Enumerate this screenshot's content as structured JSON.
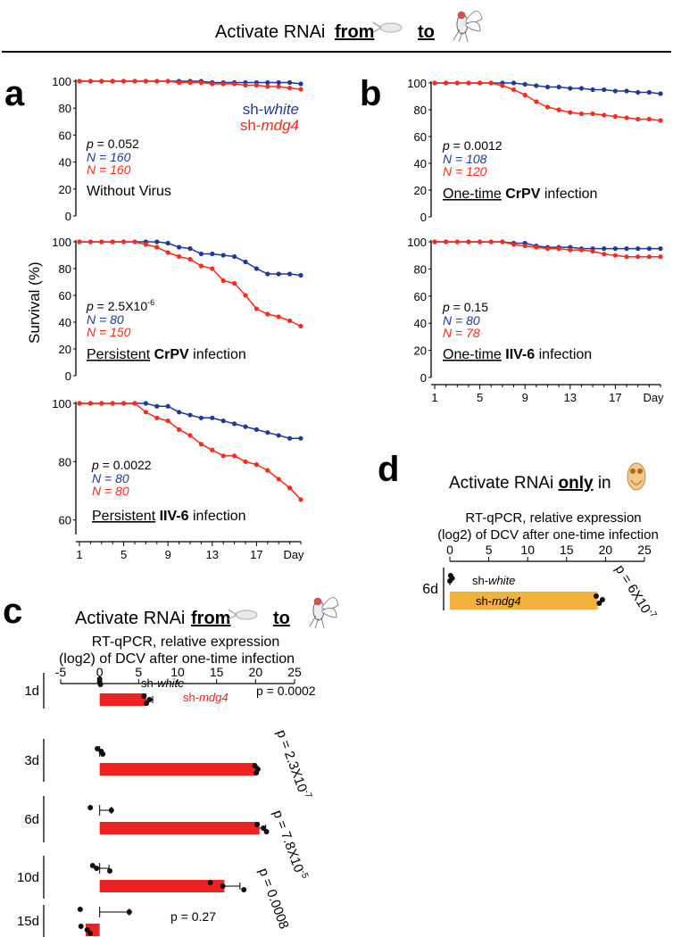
{
  "header": {
    "prefix": "Activate RNAi",
    "from": "from",
    "to": "to"
  },
  "colors": {
    "white_series": "#1f3a93",
    "mdg4_series": "#ff2a1a",
    "mdg4_bar_c": "#ee2222",
    "mdg4_bar_d": "#f2b13a",
    "dot": "#111111"
  },
  "legend": {
    "white_prefix": "sh-",
    "white_italic": "white",
    "mdg4_prefix": "sh-",
    "mdg4_italic": "mdg4"
  },
  "labels": {
    "survival_axis": "Survival (%)",
    "day": "Day"
  },
  "panels": {
    "a": "a",
    "b": "b",
    "c": "c",
    "d": "d"
  },
  "chart_data": [
    {
      "id": "a1",
      "panel": "a",
      "type": "line",
      "x": [
        1,
        2,
        3,
        4,
        5,
        6,
        7,
        8,
        9,
        10,
        11,
        12,
        13,
        14,
        15,
        16,
        17,
        18,
        19,
        20,
        21
      ],
      "xticks": [
        1,
        5,
        9,
        13,
        17
      ],
      "yticks": [
        0,
        20,
        40,
        60,
        80,
        100
      ],
      "ylim": [
        0,
        100
      ],
      "series": [
        {
          "name": "sh-white",
          "color": "#1f3a93",
          "values": [
            100,
            100,
            100,
            100,
            100,
            100,
            100,
            100,
            100,
            100,
            100,
            100,
            99,
            99,
            99,
            99,
            99,
            99,
            99,
            99,
            98
          ]
        },
        {
          "name": "sh-mdg4",
          "color": "#ff2a1a",
          "values": [
            100,
            100,
            100,
            100,
            100,
            100,
            100,
            100,
            100,
            99,
            99,
            99,
            98,
            98,
            98,
            97,
            97,
            96,
            96,
            95,
            94
          ]
        }
      ],
      "stats": {
        "p": "= 0.052",
        "n_white": "N = 160",
        "n_mdg4": "N = 160"
      },
      "caption": {
        "underlined": "",
        "bold": "",
        "rest": "Without Virus"
      },
      "show_legend": true,
      "show_xaxis": false
    },
    {
      "id": "a2",
      "panel": "a",
      "type": "line",
      "x": [
        1,
        2,
        3,
        4,
        5,
        6,
        7,
        8,
        9,
        10,
        11,
        12,
        13,
        14,
        15,
        16,
        17,
        18,
        19,
        20,
        21
      ],
      "xticks": [
        1,
        5,
        9,
        13,
        17
      ],
      "yticks": [
        0,
        20,
        40,
        60,
        80,
        100
      ],
      "ylim": [
        0,
        100
      ],
      "series": [
        {
          "name": "sh-white",
          "color": "#1f3a93",
          "values": [
            100,
            100,
            100,
            100,
            100,
            100,
            100,
            100,
            99,
            96,
            95,
            91,
            91,
            90,
            89,
            85,
            80,
            76,
            76,
            76,
            75
          ]
        },
        {
          "name": "sh-mdg4",
          "color": "#ff2a1a",
          "values": [
            100,
            100,
            100,
            100,
            100,
            100,
            98,
            96,
            92,
            89,
            87,
            82,
            80,
            71,
            69,
            60,
            50,
            46,
            44,
            41,
            37
          ]
        }
      ],
      "stats": {
        "p": "= 2.5X10",
        "p_exp": "-6",
        "n_white": "N = 80",
        "n_mdg4": "N = 150"
      },
      "caption": {
        "underlined": "Persistent",
        "bold": "CrPV",
        "rest": "infection"
      },
      "show_legend": false,
      "show_xaxis": false
    },
    {
      "id": "a3",
      "panel": "a",
      "type": "line",
      "x": [
        1,
        2,
        3,
        4,
        5,
        6,
        7,
        8,
        9,
        10,
        11,
        12,
        13,
        14,
        15,
        16,
        17,
        18,
        19,
        20,
        21
      ],
      "xticks": [
        1,
        5,
        9,
        13,
        17
      ],
      "yticks": [
        60,
        80,
        100
      ],
      "ylim": [
        55,
        100
      ],
      "series": [
        {
          "name": "sh-white",
          "color": "#1f3a93",
          "values": [
            100,
            100,
            100,
            100,
            100,
            100,
            100,
            99,
            99,
            97,
            96,
            95,
            95,
            94,
            93,
            92,
            91,
            90,
            89,
            88,
            88
          ]
        },
        {
          "name": "sh-mdg4",
          "color": "#ff2a1a",
          "values": [
            100,
            100,
            100,
            100,
            100,
            100,
            97,
            95,
            94,
            91,
            89,
            86,
            84,
            82,
            82,
            80,
            79,
            77,
            74,
            71,
            67
          ]
        }
      ],
      "stats": {
        "p": "= 0.0022",
        "n_white": "N = 80",
        "n_mdg4": "N = 80"
      },
      "caption": {
        "underlined": "Persistent",
        "bold": "IIV-6",
        "rest": "infection"
      },
      "show_legend": false,
      "show_xaxis": true
    },
    {
      "id": "b1",
      "panel": "b",
      "type": "line",
      "x": [
        1,
        2,
        3,
        4,
        5,
        6,
        7,
        8,
        9,
        10,
        11,
        12,
        13,
        14,
        15,
        16,
        17,
        18,
        19,
        20,
        21
      ],
      "xticks": [
        1,
        5,
        9,
        13,
        17
      ],
      "yticks": [
        0,
        20,
        40,
        60,
        80,
        100
      ],
      "ylim": [
        0,
        100
      ],
      "series": [
        {
          "name": "sh-white",
          "color": "#1f3a93",
          "values": [
            100,
            100,
            100,
            100,
            100,
            100,
            100,
            100,
            99,
            98,
            97,
            97,
            96,
            96,
            95,
            95,
            94,
            94,
            93,
            93,
            92
          ]
        },
        {
          "name": "sh-mdg4",
          "color": "#ff2a1a",
          "values": [
            100,
            100,
            100,
            100,
            100,
            100,
            98,
            95,
            91,
            86,
            82,
            80,
            78,
            77,
            77,
            76,
            75,
            74,
            73,
            73,
            72
          ]
        }
      ],
      "stats": {
        "p": "= 0.0012",
        "n_white": "N = 108",
        "n_mdg4": "N = 120"
      },
      "caption": {
        "underlined": "One-time",
        "bold": "CrPV",
        "rest": "infection"
      },
      "show_legend": false,
      "show_xaxis": false
    },
    {
      "id": "b2",
      "panel": "b",
      "type": "line",
      "x": [
        1,
        2,
        3,
        4,
        5,
        6,
        7,
        8,
        9,
        10,
        11,
        12,
        13,
        14,
        15,
        16,
        17,
        18,
        19,
        20,
        21
      ],
      "xticks": [
        1,
        5,
        9,
        13,
        17
      ],
      "yticks": [
        0,
        20,
        40,
        60,
        80,
        100
      ],
      "ylim": [
        0,
        100
      ],
      "series": [
        {
          "name": "sh-white",
          "color": "#1f3a93",
          "values": [
            100,
            100,
            100,
            100,
            100,
            100,
            100,
            99,
            99,
            97,
            96,
            96,
            96,
            95,
            95,
            95,
            95,
            95,
            95,
            95,
            95
          ]
        },
        {
          "name": "sh-mdg4",
          "color": "#ff2a1a",
          "values": [
            100,
            100,
            100,
            100,
            100,
            100,
            100,
            98,
            97,
            96,
            95,
            95,
            94,
            94,
            93,
            91,
            90,
            89,
            89,
            89,
            89
          ]
        }
      ],
      "stats": {
        "p": "= 0.15",
        "n_white": "N = 80",
        "n_mdg4": "N = 78"
      },
      "caption": {
        "underlined": "One-time",
        "bold": "IIV-6",
        "rest": "infection"
      },
      "show_legend": false,
      "show_xaxis": true
    },
    {
      "id": "c",
      "panel": "c",
      "type": "bar",
      "title_line1": "RT-qPCR, relative expression",
      "title_line2": "(log2) of DCV after one-time infection",
      "xticks": [
        -5,
        0,
        5,
        10,
        15,
        20,
        25
      ],
      "xlim": [
        -5,
        25
      ],
      "rows": [
        {
          "label": "1d",
          "white": 0,
          "white_err": 0,
          "white_pts": [
            0.0,
            0.0,
            0.1
          ],
          "mdg4": 6,
          "mdg4_err": 0.8,
          "mdg4_pts": [
            5.7,
            6.4,
            6.0
          ],
          "p_text": "p = 0.0002",
          "p_rot": false
        },
        {
          "label": "3d",
          "white": 0.3,
          "white_err": 0,
          "white_pts": [
            -0.3,
            0.2,
            0.4
          ],
          "mdg4": 20,
          "mdg4_err": 0.3,
          "mdg4_pts": [
            19.9,
            20.3,
            20.1
          ],
          "p_text": "p = 2.3X10",
          "p_exp": "-7",
          "p_rot": true
        },
        {
          "label": "6d",
          "white": 0,
          "white_err": 1.5,
          "white_pts": [
            -1.2,
            1.5
          ],
          "mdg4": 20.5,
          "mdg4_err": 0.8,
          "mdg4_pts": [
            20.2,
            21.0,
            21.4
          ],
          "p_text": "p = 7.8X10",
          "p_exp": "-5",
          "p_rot": true
        },
        {
          "label": "10d",
          "white": 0,
          "white_err": 1.2,
          "white_pts": [
            -0.9,
            -0.4,
            1.3
          ],
          "mdg4": 16,
          "mdg4_err": 2,
          "mdg4_pts": [
            14.2,
            15.8,
            18.5
          ],
          "p_text": "p = 0.0008",
          "p_rot": true
        },
        {
          "label": "15d",
          "white": 0,
          "white_err": 3.8,
          "white_pts": [
            -2.5,
            3.8
          ],
          "mdg4": -1.8,
          "mdg4_err": 0,
          "mdg4_pts": [
            -2.4,
            -1.6,
            -1.2
          ],
          "p_text": "p = 0.27",
          "p_rot": false
        }
      ],
      "white_label_prefix": "sh-",
      "white_label_italic": "white",
      "mdg4_label_prefix": "sh-",
      "mdg4_label_italic": "mdg4"
    },
    {
      "id": "d",
      "panel": "d",
      "type": "bar",
      "title_prefix": "Activate RNAi",
      "title_bold": "only",
      "title_suffix": "in",
      "title_line1": "RT-qPCR, relative expression",
      "title_line2": "(log2) of DCV after one-time infection",
      "xticks": [
        0,
        5,
        10,
        15,
        20,
        25
      ],
      "xlim": [
        0,
        25
      ],
      "rows": [
        {
          "label": "6d",
          "white": 0,
          "white_pts": [
            0.1,
            0.3,
            0.0
          ],
          "mdg4": 19,
          "mdg4_pts": [
            18.8,
            19.6,
            19.2
          ],
          "p_text": "p = 6X10",
          "p_exp": "-7"
        }
      ],
      "white_label_prefix": "sh-",
      "white_label_italic": "white",
      "mdg4_label_prefix": "sh-",
      "mdg4_label_italic": "mdg4"
    }
  ]
}
